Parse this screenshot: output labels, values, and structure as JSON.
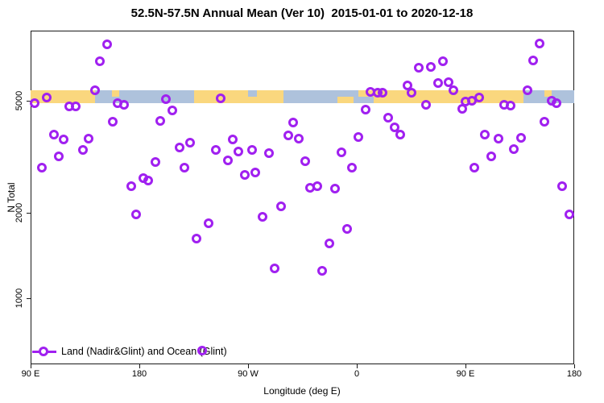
{
  "title": "52.5N-57.5N Annual Mean (Ver 10)  2015-01-01 to 2020-12-18",
  "legend": {
    "label": "Land (Nadir&Glint) and Ocean (Glint)"
  },
  "colors": {
    "point": "#A020F0",
    "land": "#FAD77E",
    "ocean": "#AEC2DC",
    "axis": "#1a1a1a"
  },
  "chart_data": {
    "type": "scatter",
    "title": "52.5N-57.5N Annual Mean (Ver 10)  2015-01-01 to 2020-12-18",
    "xlabel": "Longitude (deg E)",
    "ylabel": "N Total",
    "y_scale": "log",
    "y_range": [
      583,
      8850
    ],
    "x_axis_note": "longitude axis spans 450 deg starting at 90E, wrapping 180, 90W, 0, 90E, 180",
    "x_range_deg": [
      90,
      540
    ],
    "x_ticks": [
      {
        "deg": 90,
        "label": "90 E"
      },
      {
        "deg": 180,
        "label": "180"
      },
      {
        "deg": 270,
        "label": "90 W"
      },
      {
        "deg": 360,
        "label": "0"
      },
      {
        "deg": 450,
        "label": "90 E"
      },
      {
        "deg": 540,
        "label": "180"
      }
    ],
    "y_ticks": [
      {
        "value": 1000,
        "label": "1000"
      },
      {
        "value": 2000,
        "label": "2000"
      },
      {
        "value": 5000,
        "label": "5000"
      }
    ],
    "grid": false,
    "legend_position": "bottom-left",
    "series": [
      {
        "name": "Land (Nadir&Glint) and Ocean (Glint)",
        "color": "#A020F0",
        "marker": "open-circle",
        "points": [
          [
            153,
            7920
          ],
          [
            147,
            6900
          ],
          [
            143,
            5448
          ],
          [
            103,
            5133
          ],
          [
            93,
            4902
          ],
          [
            122,
            4775
          ],
          [
            127,
            4775
          ],
          [
            162,
            4902
          ],
          [
            167,
            4840
          ],
          [
            202,
            5066
          ],
          [
            158,
            4214
          ],
          [
            197,
            4242
          ],
          [
            109,
            3795
          ],
          [
            117,
            3648
          ],
          [
            138,
            3673
          ],
          [
            133,
            3350
          ],
          [
            113,
            3177
          ],
          [
            99,
            2898
          ],
          [
            193,
            3035
          ],
          [
            183,
            2661
          ],
          [
            187,
            2610
          ],
          [
            173,
            2493
          ],
          [
            247,
            5100
          ],
          [
            207,
            4622
          ],
          [
            307,
            4188
          ],
          [
            303,
            3770
          ],
          [
            312,
            3673
          ],
          [
            222,
            3553
          ],
          [
            257,
            3648
          ],
          [
            213,
            3416
          ],
          [
            243,
            3350
          ],
          [
            262,
            3307
          ],
          [
            273,
            3350
          ],
          [
            287,
            3263
          ],
          [
            253,
            3076
          ],
          [
            317,
            3055
          ],
          [
            217,
            2898
          ],
          [
            267,
            2732
          ],
          [
            276,
            2787
          ],
          [
            411,
            6546
          ],
          [
            421,
            6589
          ],
          [
            431,
            6900
          ],
          [
            427,
            5778
          ],
          [
            436,
            5816
          ],
          [
            402,
            5665
          ],
          [
            405,
            5340
          ],
          [
            371,
            5376
          ],
          [
            377,
            5340
          ],
          [
            381,
            5340
          ],
          [
            417,
            4839
          ],
          [
            367,
            4652
          ],
          [
            386,
            4356
          ],
          [
            391,
            4025
          ],
          [
            396,
            3795
          ],
          [
            361,
            3721
          ],
          [
            347,
            3284
          ],
          [
            356,
            2898
          ],
          [
            327,
            2493
          ],
          [
            321,
            2460
          ],
          [
            342,
            2443
          ],
          [
            511,
            7973
          ],
          [
            506,
            6945
          ],
          [
            440,
            5448
          ],
          [
            501,
            5448
          ],
          [
            461,
            5133
          ],
          [
            450,
            4967
          ],
          [
            455,
            5000
          ],
          [
            482,
            4839
          ],
          [
            487,
            4812
          ],
          [
            521,
            5000
          ],
          [
            525,
            4902
          ],
          [
            447,
            4683
          ],
          [
            515,
            4214
          ],
          [
            466,
            3795
          ],
          [
            477,
            3673
          ],
          [
            496,
            3697
          ],
          [
            490,
            3371
          ],
          [
            471,
            3177
          ],
          [
            457,
            2898
          ],
          [
            530,
            2493
          ],
          [
            177,
            1980
          ],
          [
            237,
            1842
          ],
          [
            227,
            1626
          ],
          [
            282,
            1942
          ],
          [
            297,
            2115
          ],
          [
            292,
            1275
          ],
          [
            232,
            652
          ],
          [
            352,
            1760
          ],
          [
            337,
            1563
          ],
          [
            331,
            1250
          ],
          [
            536,
            1980
          ]
        ]
      }
    ],
    "map_band": {
      "description": "land/ocean strip for 52.5N-57.5N drawn across the plot near N=5000",
      "land_color": "#FAD77E",
      "ocean_color": "#AEC2DC",
      "ocean_segments_deg": [
        {
          "from": 143,
          "to": 225,
          "part": "full"
        },
        {
          "from": 270,
          "to": 277,
          "part": "top"
        },
        {
          "from": 299,
          "to": 361,
          "part": "full"
        },
        {
          "from": 361,
          "to": 374,
          "part": "bottom"
        },
        {
          "from": 498,
          "to": 540,
          "part": "full"
        }
      ],
      "land_patches_deg": [
        {
          "from": 157,
          "to": 163,
          "part": "top"
        },
        {
          "from": 344,
          "to": 357,
          "part": "bottom"
        },
        {
          "from": 515,
          "to": 521,
          "part": "top"
        }
      ]
    }
  }
}
